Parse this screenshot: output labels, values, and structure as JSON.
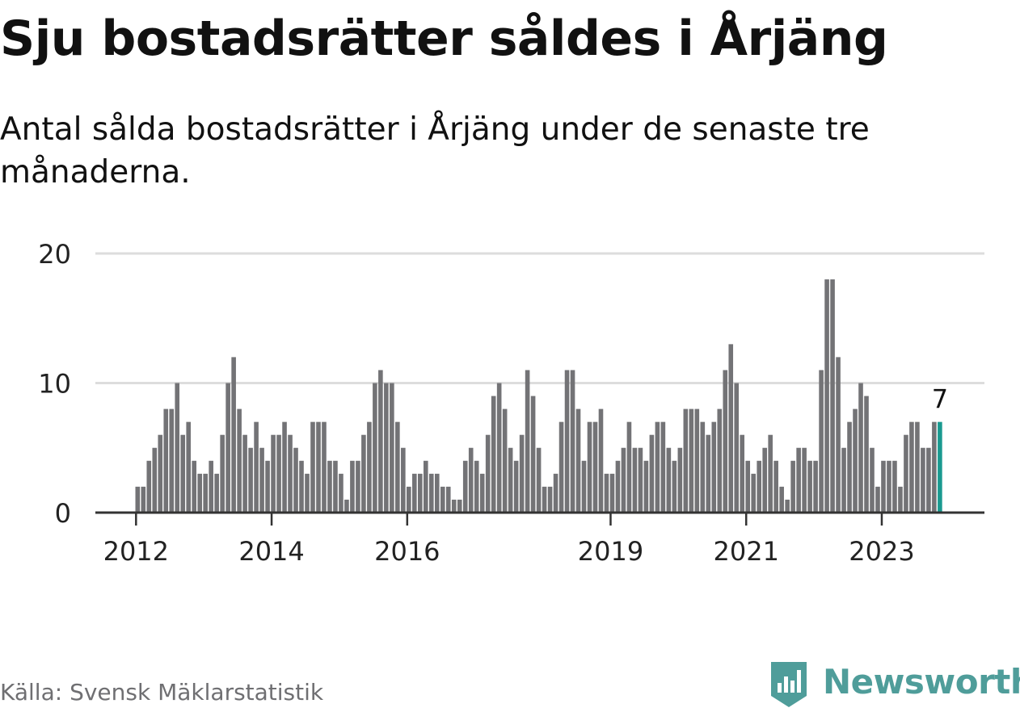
{
  "title": "Sju bostadsrätter såldes i Årjäng",
  "subtitle": "Antal sålda bostadsrätter i Årjäng under de senaste tre månaderna.",
  "source": "Källa: Svensk Mäklarstatistik",
  "brand": {
    "name": "Newsworthy",
    "logo_icon": "newsworthy-bar-chart-logo",
    "color": "#4f9d9a"
  },
  "chart_data": {
    "type": "bar",
    "start": "2012-01",
    "frequency": "monthly",
    "values": [
      2,
      2,
      4,
      5,
      6,
      8,
      8,
      10,
      6,
      7,
      4,
      3,
      3,
      4,
      3,
      6,
      10,
      12,
      8,
      6,
      5,
      7,
      5,
      4,
      6,
      6,
      7,
      6,
      5,
      4,
      3,
      7,
      7,
      7,
      4,
      4,
      3,
      1,
      4,
      4,
      6,
      7,
      10,
      11,
      10,
      10,
      7,
      5,
      2,
      3,
      3,
      4,
      3,
      3,
      2,
      2,
      1,
      1,
      4,
      5,
      4,
      3,
      6,
      9,
      10,
      8,
      5,
      4,
      6,
      11,
      9,
      5,
      2,
      2,
      3,
      7,
      11,
      11,
      8,
      4,
      7,
      7,
      8,
      3,
      3,
      4,
      5,
      7,
      5,
      5,
      4,
      6,
      7,
      7,
      5,
      4,
      5,
      8,
      8,
      8,
      7,
      6,
      7,
      8,
      11,
      13,
      10,
      6,
      4,
      3,
      4,
      5,
      6,
      4,
      2,
      1,
      4,
      5,
      5,
      4,
      4,
      11,
      18,
      18,
      12,
      5,
      7,
      8,
      10,
      9,
      5,
      2,
      4,
      4,
      4,
      2,
      6,
      7,
      7,
      5,
      5,
      7,
      7
    ],
    "highlight_last": true,
    "highlight_label": "7",
    "x_ticks": [
      "2012",
      "2014",
      "2016",
      "2019",
      "2021",
      "2023"
    ],
    "y_ticks": [
      "0",
      "10",
      "20"
    ],
    "ylim": [
      0,
      20
    ],
    "grid": true,
    "colors": {
      "bar": "#737376",
      "highlight": "#1a9a90",
      "grid": "#dddddd",
      "axis": "#333333",
      "tick_text": "#222222"
    }
  }
}
